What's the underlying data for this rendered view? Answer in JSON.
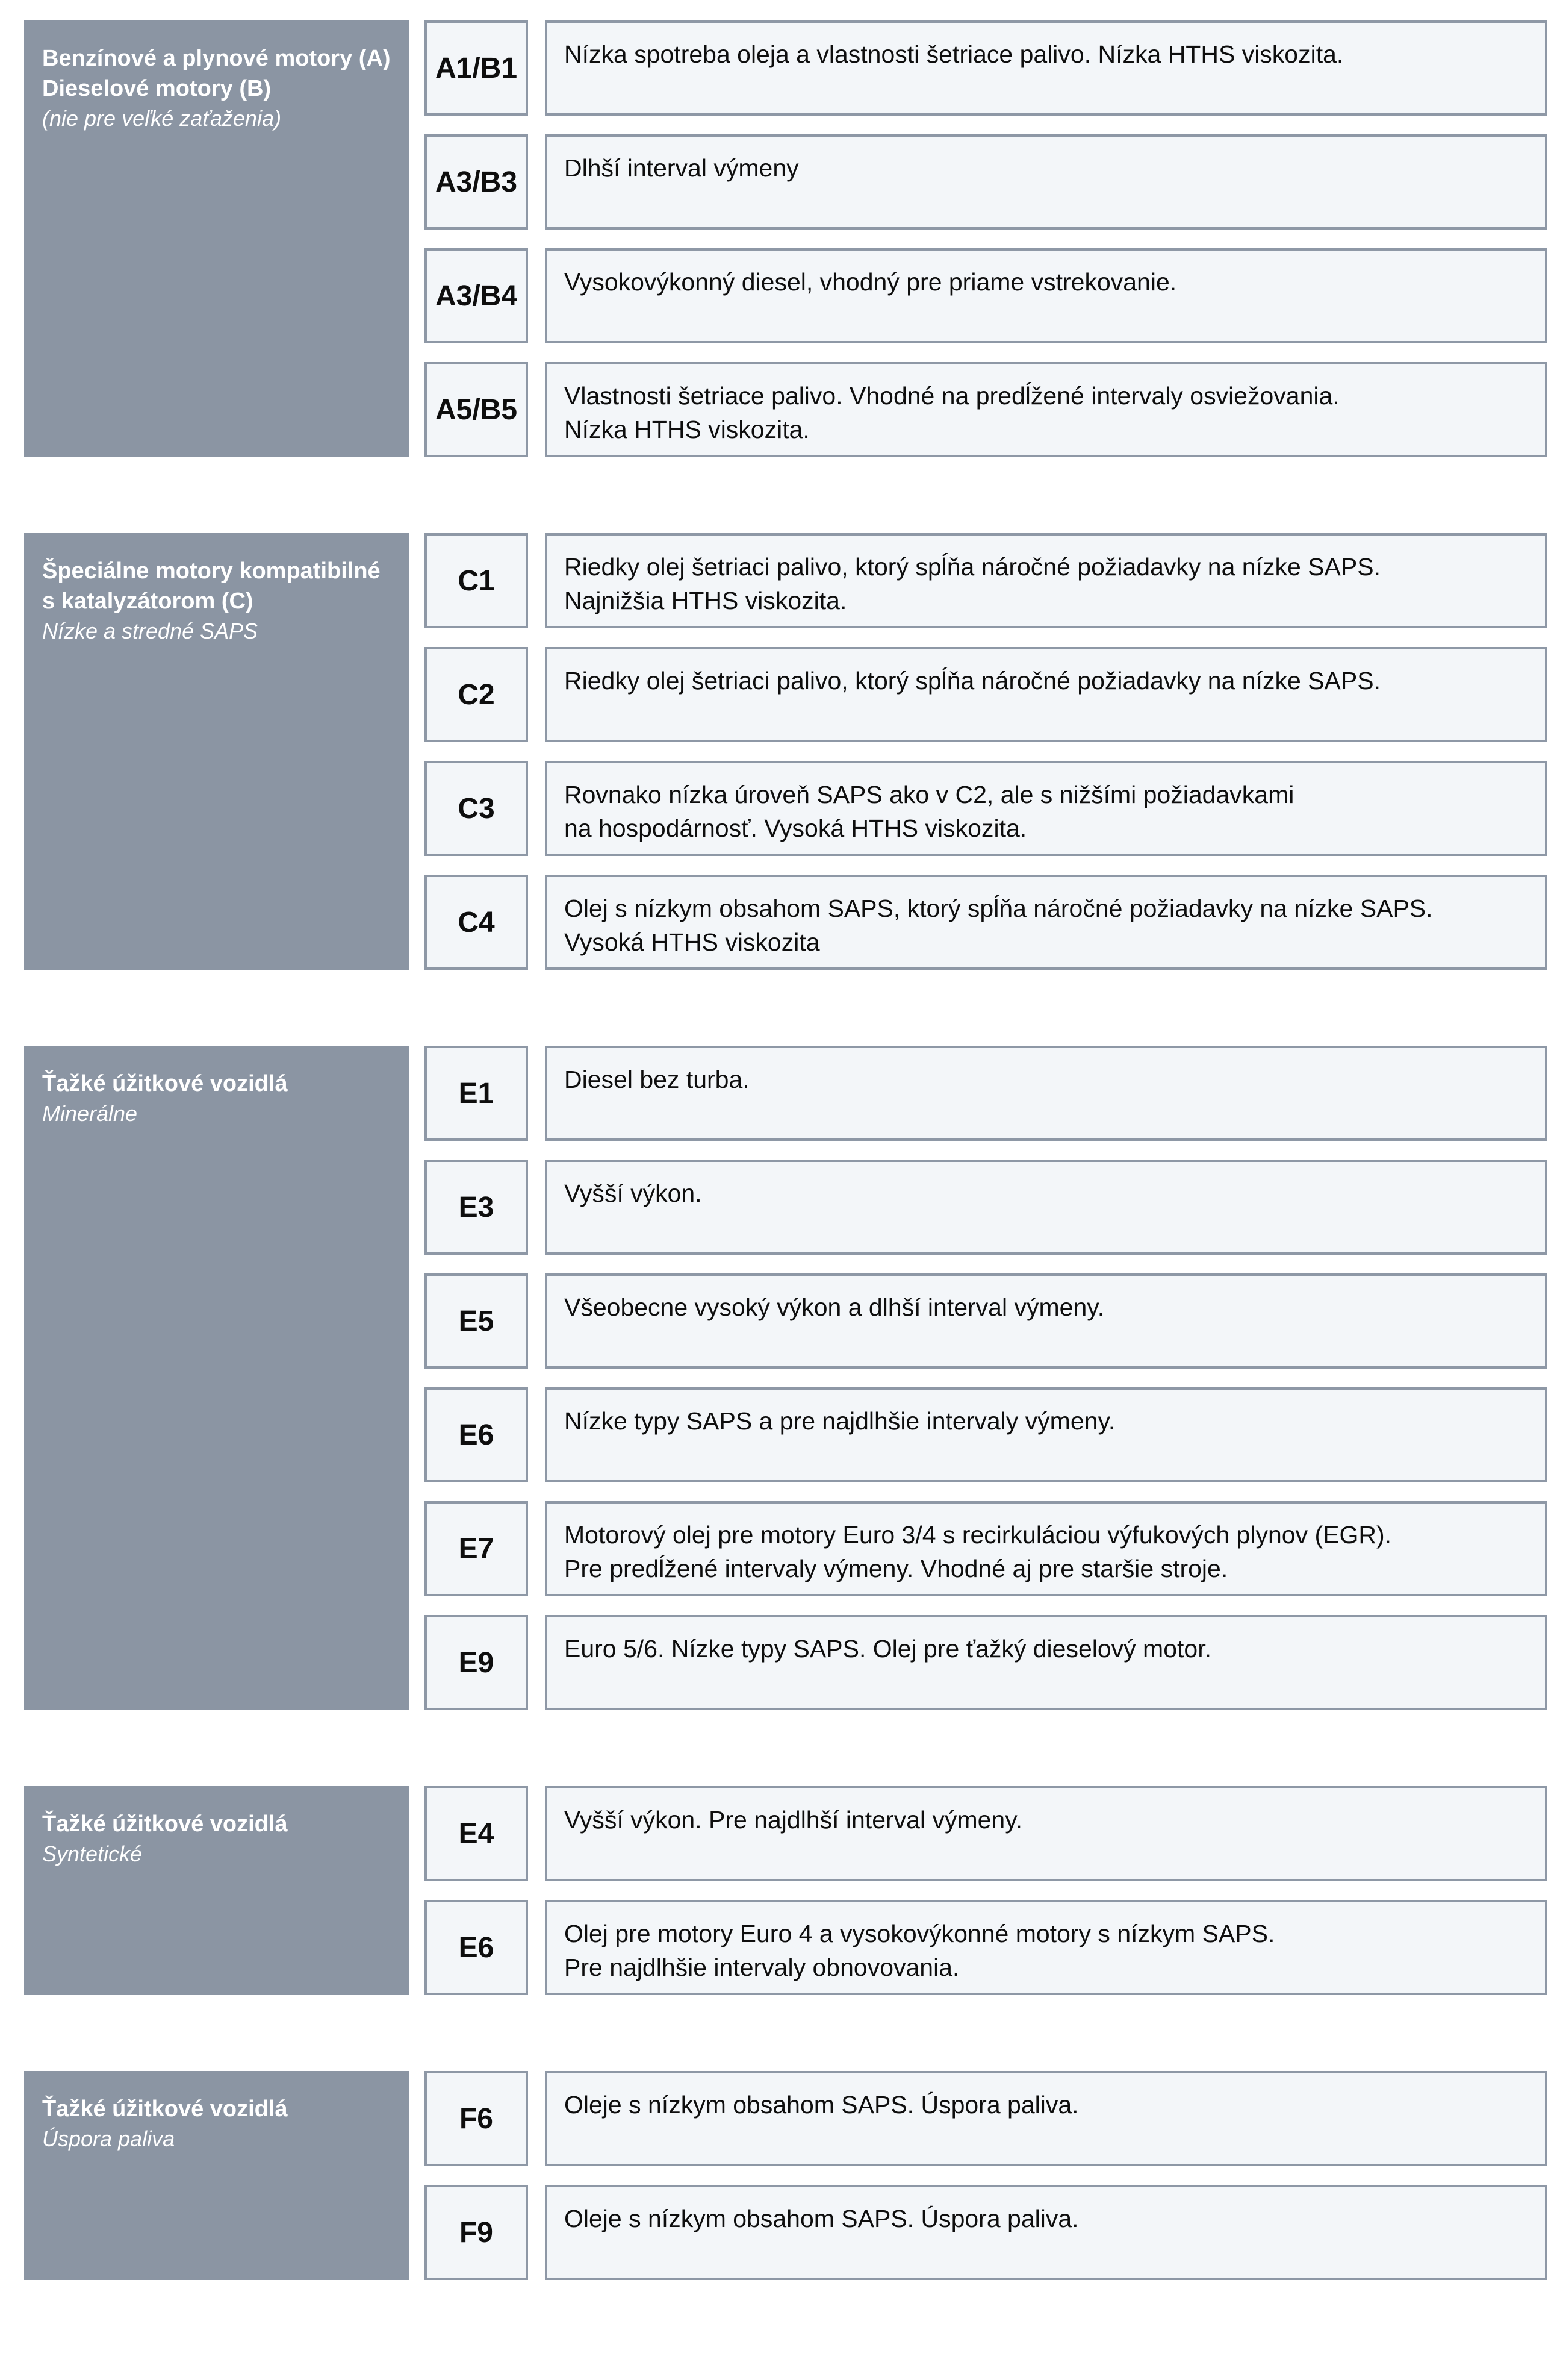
{
  "document_title": "ACEA oil specification classes (Slovak)",
  "colors": {
    "header_bg": "#8b95a3",
    "header_text": "#ffffff",
    "box_bg": "#f3f6f9",
    "box_border": "#8e98a6",
    "body_text": "#0e0e0e",
    "page_bg": "#ffffff"
  },
  "sections": [
    {
      "header": {
        "title": "Benzínové a plynové motory (A)\nDieselové motory (B)",
        "subtitle": "(nie pre veľké zaťaženia)"
      },
      "rows": [
        {
          "code": "A1/B1",
          "description": "Nízka spotreba oleja a vlastnosti šetriace palivo. Nízka HTHS viskozita."
        },
        {
          "code": "A3/B3",
          "description": "Dlhší interval výmeny"
        },
        {
          "code": "A3/B4",
          "description": "Vysokovýkonný diesel, vhodný pre priame vstrekovanie."
        },
        {
          "code": "A5/B5",
          "description": "Vlastnosti šetriace palivo. Vhodné na predĺžené intervaly osviežovania.\nNízka HTHS viskozita."
        }
      ]
    },
    {
      "header": {
        "title": "Špeciálne motory kompatibilné\ns katalyzátorom (C)",
        "subtitle": "Nízke a stredné SAPS"
      },
      "rows": [
        {
          "code": "C1",
          "description": "Riedky olej šetriaci palivo, ktorý spĺňa náročné požiadavky na nízke SAPS.\nNajnižšia HTHS viskozita."
        },
        {
          "code": "C2",
          "description": "Riedky olej šetriaci palivo, ktorý spĺňa náročné požiadavky na nízke SAPS."
        },
        {
          "code": "C3",
          "description": "Rovnako nízka úroveň SAPS ako v C2, ale s nižšími požiadavkami\nna hospodárnosť. Vysoká HTHS viskozita."
        },
        {
          "code": "C4",
          "description": "Olej s nízkym obsahom SAPS, ktorý spĺňa náročné požiadavky na nízke SAPS.\nVysoká HTHS viskozita"
        }
      ]
    },
    {
      "header": {
        "title": "Ťažké úžitkové vozidlá",
        "subtitle": "Minerálne"
      },
      "rows": [
        {
          "code": "E1",
          "description": "Diesel bez turba."
        },
        {
          "code": "E3",
          "description": "Vyšší výkon."
        },
        {
          "code": "E5",
          "description": "Všeobecne vysoký výkon a dlhší interval výmeny."
        },
        {
          "code": "E6",
          "description": "Nízke typy SAPS a pre najdlhšie intervaly výmeny."
        },
        {
          "code": "E7",
          "description": "Motorový olej pre motory Euro 3/4 s recirkuláciou výfukových plynov (EGR).\nPre predĺžené intervaly výmeny. Vhodné aj pre staršie stroje."
        },
        {
          "code": "E9",
          "description": "Euro 5/6. Nízke typy SAPS. Olej pre ťažký dieselový motor."
        }
      ]
    },
    {
      "header": {
        "title": "Ťažké úžitkové vozidlá",
        "subtitle": "Syntetické"
      },
      "rows": [
        {
          "code": "E4",
          "description": "Vyšší výkon. Pre najdlhší interval výmeny."
        },
        {
          "code": "E6",
          "description": "Olej pre motory Euro 4 a vysokovýkonné motory s nízkym SAPS.\nPre najdlhšie intervaly obnovovania."
        }
      ]
    },
    {
      "header": {
        "title": "Ťažké úžitkové vozidlá",
        "subtitle": "Úspora paliva"
      },
      "rows": [
        {
          "code": "F6",
          "description": "Oleje s nízkym obsahom SAPS. Úspora paliva."
        },
        {
          "code": "F9",
          "description": "Oleje s nízkym obsahom SAPS. Úspora paliva."
        }
      ]
    }
  ]
}
